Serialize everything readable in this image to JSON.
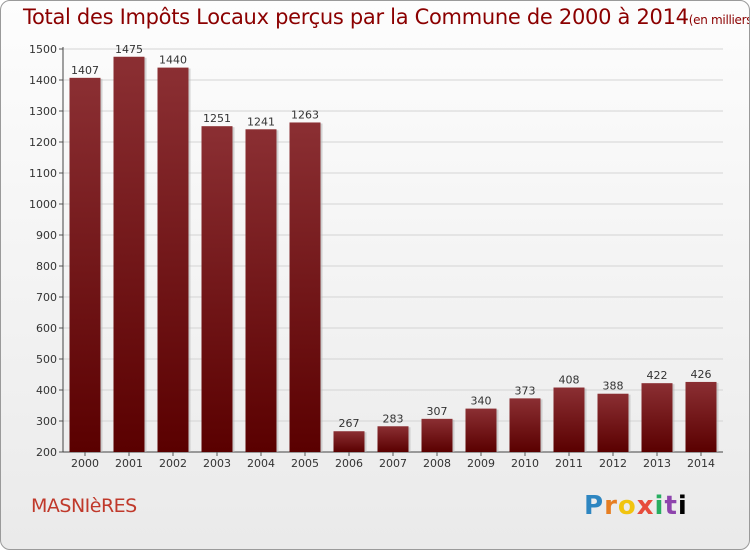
{
  "header": {
    "title": "Total des Impôts Locaux perçus par la Commune de 2000 à 2014",
    "unit": "(en milliers d'€)"
  },
  "footer": {
    "commune": "MASNIèRES",
    "logo_letters": [
      "P",
      "r",
      "o",
      "x",
      "i",
      "t",
      "i"
    ]
  },
  "colors": {
    "bar_top": "#8b2f33",
    "bar_bottom": "#5a0000",
    "title": "#8b0000"
  },
  "chart_data": {
    "type": "bar",
    "title": "Total des Impôts Locaux perçus par la Commune de 2000 à 2014",
    "subtitle": "(en milliers d'€)",
    "xlabel": "",
    "ylabel": "",
    "categories": [
      "2000",
      "2001",
      "2002",
      "2003",
      "2004",
      "2005",
      "2006",
      "2007",
      "2008",
      "2009",
      "2010",
      "2011",
      "2012",
      "2013",
      "2014"
    ],
    "values": [
      1407,
      1475,
      1440,
      1251,
      1241,
      1263,
      267,
      283,
      307,
      340,
      373,
      408,
      388,
      422,
      426
    ],
    "ylim": [
      200,
      1500
    ],
    "yticks": [
      200,
      300,
      400,
      500,
      600,
      700,
      800,
      900,
      1000,
      1100,
      1200,
      1300,
      1400,
      1500
    ],
    "grid": true,
    "data_labels": true
  }
}
